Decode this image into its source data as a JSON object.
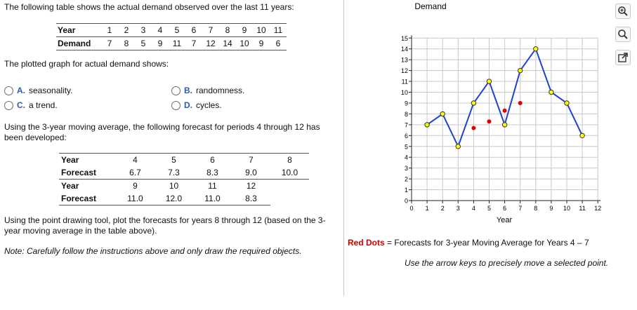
{
  "question": {
    "intro": "The following table shows the actual demand observed over the last 11 years:",
    "demand_table": {
      "year_label": "Year",
      "demand_label": "Demand",
      "years": [
        "1",
        "2",
        "3",
        "4",
        "5",
        "6",
        "7",
        "8",
        "9",
        "10",
        "11"
      ],
      "demand": [
        "7",
        "8",
        "5",
        "9",
        "11",
        "7",
        "12",
        "14",
        "10",
        "9",
        "6"
      ]
    },
    "plot_prompt": "The plotted graph for actual demand shows:",
    "options": [
      {
        "letter": "A.",
        "text": "seasonality."
      },
      {
        "letter": "B.",
        "text": "randomness."
      },
      {
        "letter": "C.",
        "text": "a trend."
      },
      {
        "letter": "D.",
        "text": "cycles."
      }
    ],
    "ma_prompt": "Using the 3-year moving average, the following forecast for periods 4 through 12 has been developed:",
    "forecast_table": {
      "year_label": "Year",
      "forecast_label": "Forecast",
      "row1_years": [
        "4",
        "5",
        "6",
        "7",
        "8"
      ],
      "row1_forecasts": [
        "6.7",
        "7.3",
        "8.3",
        "9.0",
        "10.0"
      ],
      "row2_years": [
        "9",
        "10",
        "11",
        "12"
      ],
      "row2_forecasts": [
        "11.0",
        "12.0",
        "11.0",
        "8.3"
      ]
    },
    "instruction": "Using the point drawing tool, plot the forecasts for years 8 through 12 (based on the 3-year moving average in the table above).",
    "note": "Note: Carefully follow the instructions above and only draw the required objects."
  },
  "graph": {
    "title": "Demand",
    "xlabel": "Year",
    "legend_red": "Red Dots",
    "legend_rest": "= Forecasts for 3-year Moving Average for Years 4 – 7",
    "hint": "Use the arrow keys to precisely move a selected point."
  },
  "tools": {
    "zoom_in_icon": "zoom-in-icon",
    "zoom_out_icon": "zoom-out-icon",
    "popout_icon": "popout-icon"
  },
  "colors": {
    "line": "#1f3fd6",
    "marker": "#ffff00",
    "red_dot": "#e00000",
    "grid": "#c8c8c8"
  },
  "chart_data": {
    "type": "line",
    "title": "Demand",
    "xlabel": "Year",
    "ylabel": "",
    "xlim": [
      0,
      12
    ],
    "ylim": [
      0,
      15
    ],
    "x_ticks": [
      0,
      1,
      2,
      3,
      4,
      5,
      6,
      7,
      8,
      9,
      10,
      11,
      12
    ],
    "y_ticks": [
      0,
      1,
      2,
      3,
      4,
      5,
      6,
      7,
      8,
      9,
      10,
      11,
      12,
      13,
      14,
      15
    ],
    "grid": true,
    "series": [
      {
        "x": [
          1,
          2,
          3,
          4,
          5,
          6,
          7,
          8,
          9,
          10,
          11
        ],
        "y": [
          7,
          8,
          5,
          9,
          11,
          7,
          12,
          14,
          10,
          9,
          6
        ]
      },
      {
        "name": "Red Dots",
        "x": [
          4,
          5,
          6,
          7
        ],
        "y": [
          6.7,
          7.3,
          8.3,
          9.0
        ]
      }
    ]
  }
}
